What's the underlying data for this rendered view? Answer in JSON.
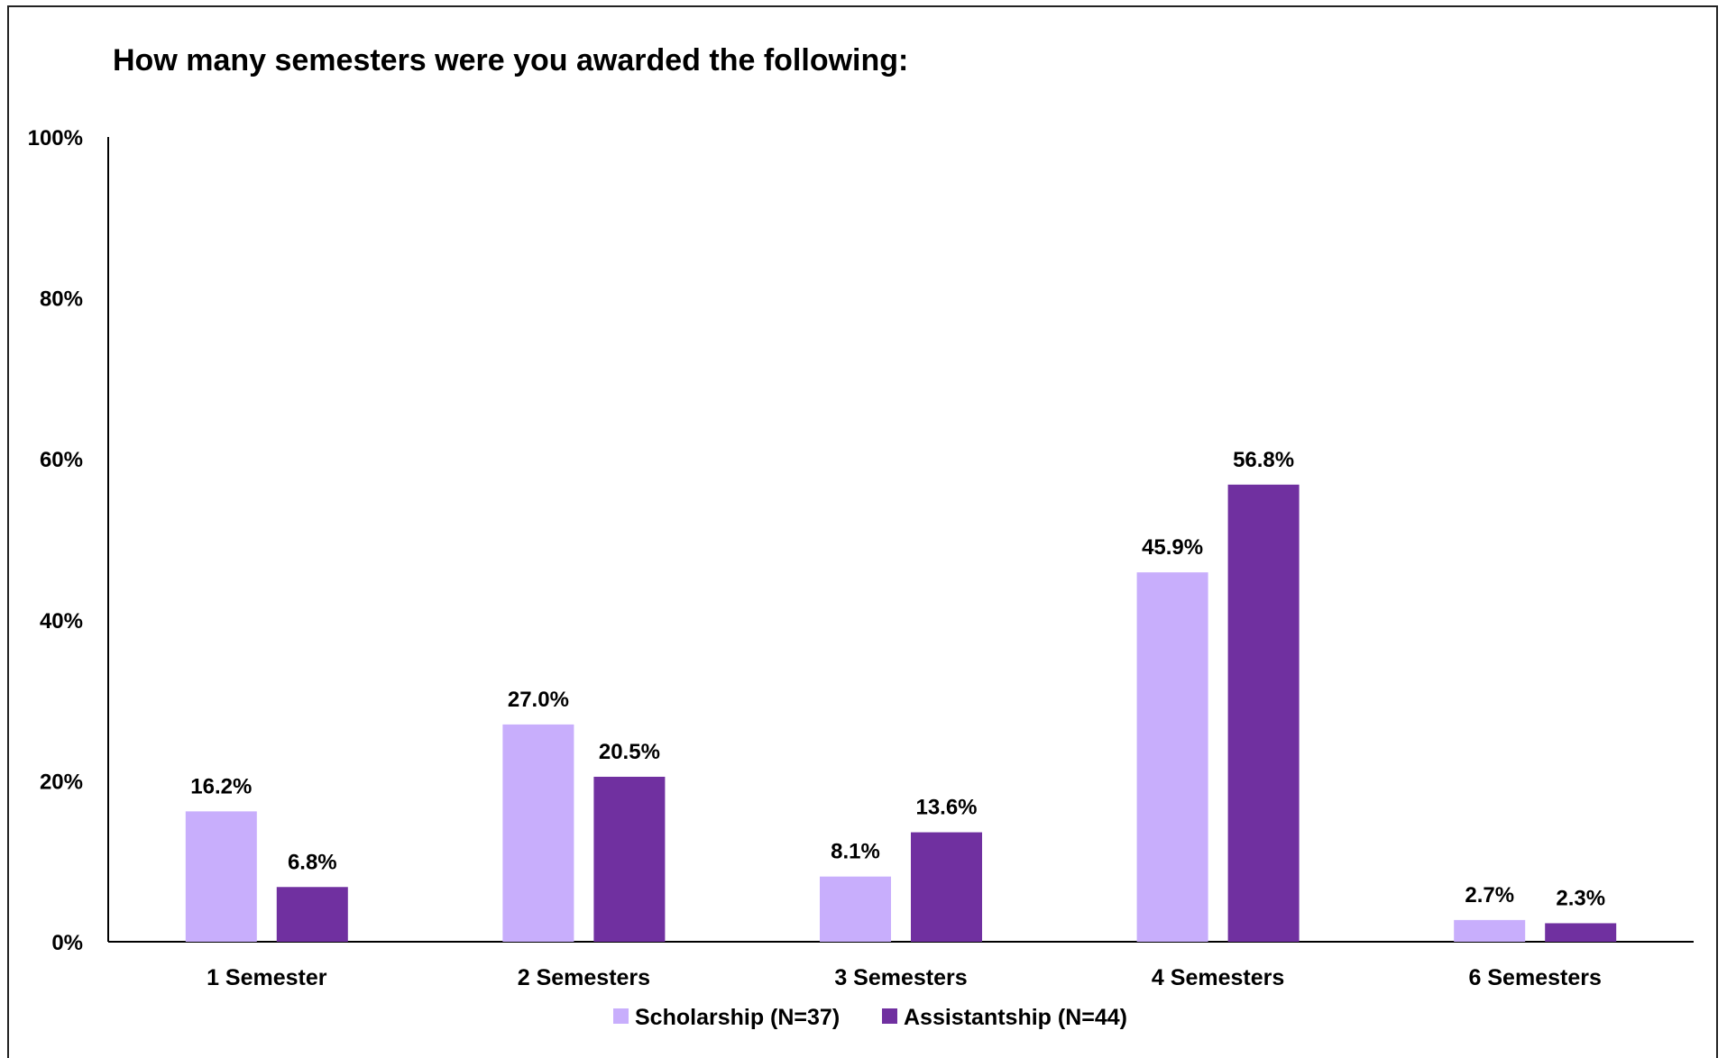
{
  "chart_data": {
    "type": "bar",
    "title": "How many semesters were you awarded the following:",
    "xlabel": "",
    "ylabel": "",
    "categories": [
      "1 Semester",
      "2 Semesters",
      "3 Semesters",
      "4 Semesters",
      "6 Semesters"
    ],
    "series": [
      {
        "name": "Scholarship (N=37)",
        "color": "#c8aefc",
        "values": [
          16.2,
          27.0,
          8.1,
          45.9,
          2.7
        ],
        "labels": [
          "16.2%",
          "27.0%",
          "8.1%",
          "45.9%",
          "2.7%"
        ]
      },
      {
        "name": "Assistantship (N=44)",
        "color": "#7030a0",
        "values": [
          6.8,
          20.5,
          13.6,
          56.8,
          2.3
        ],
        "labels": [
          "6.8%",
          "20.5%",
          "13.6%",
          "56.8%",
          "2.3%"
        ]
      }
    ],
    "ylim": [
      0,
      100
    ],
    "yticks": [
      {
        "value": 0,
        "label": "0%"
      },
      {
        "value": 20,
        "label": "20%"
      },
      {
        "value": 40,
        "label": "40%"
      },
      {
        "value": 60,
        "label": "60%"
      },
      {
        "value": 80,
        "label": "80%"
      },
      {
        "value": 100,
        "label": "100%"
      }
    ],
    "grid": false,
    "legend": "bottom"
  }
}
